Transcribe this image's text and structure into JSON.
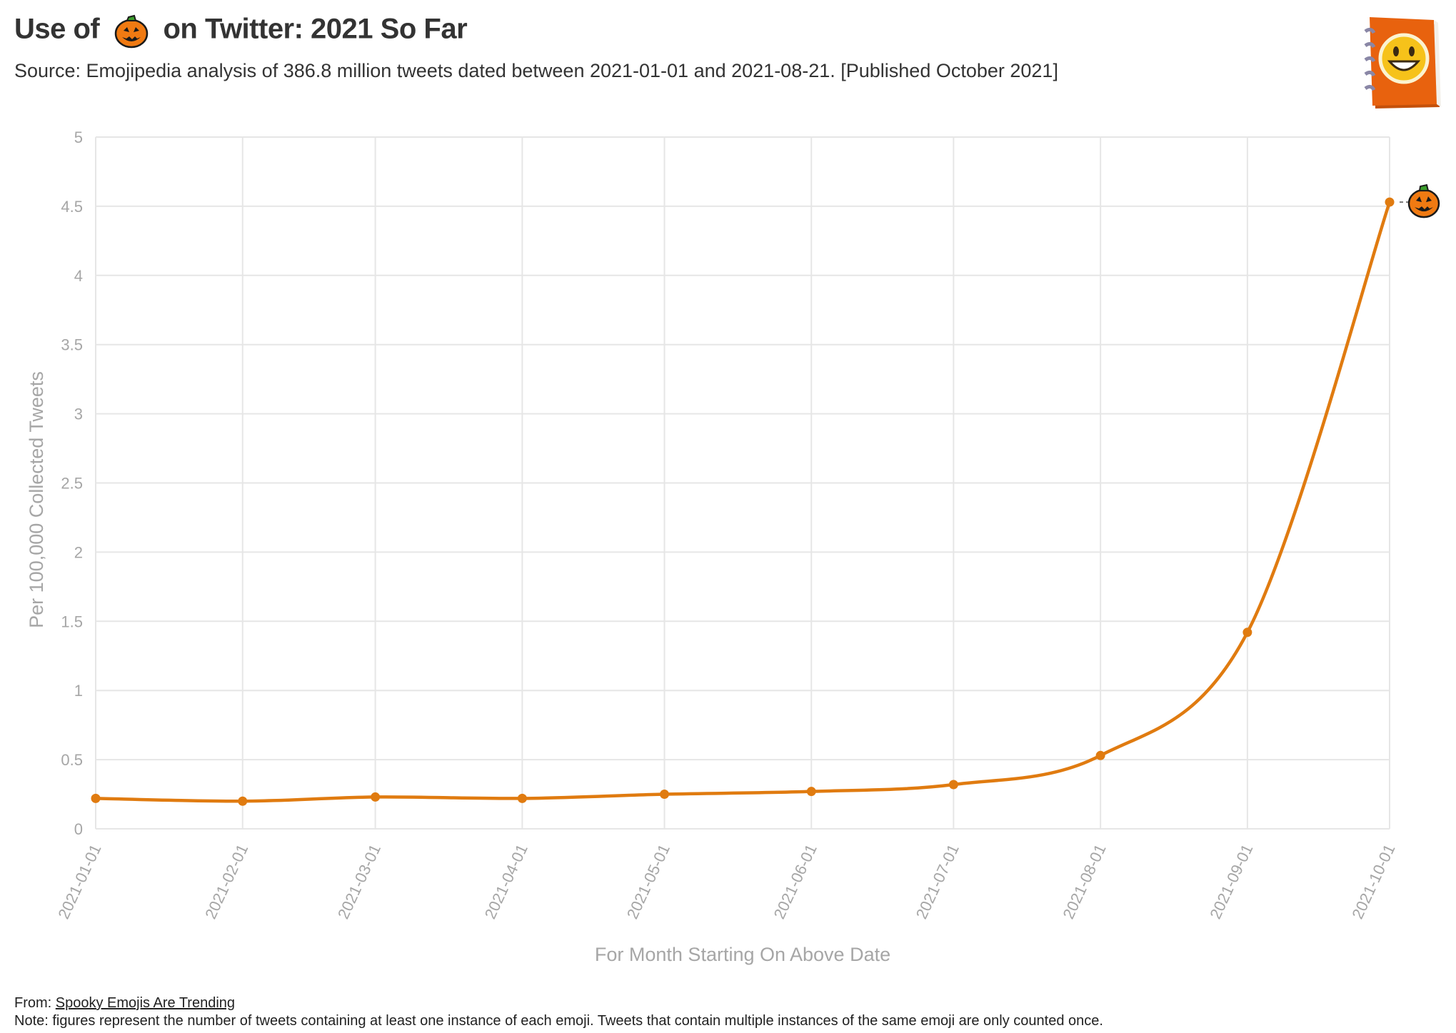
{
  "title": {
    "prefix": "Use of",
    "emoji": "jack-o-lantern-icon",
    "suffix": "on Twitter: 2021 So Far"
  },
  "subtitle": "Source: Emojipedia analysis of 386.8 million tweets dated between 2021-01-01 and 2021-08-21. [Published October 2021]",
  "logo": "emojipedia-book-logo-icon",
  "footer": {
    "from_label": "From:",
    "from_link": "Spooky Emojis Are Trending",
    "note": "Note: figures represent the number of tweets containing at least one instance of each emoji. Tweets that contain multiple instances of the same emoji are only counted once."
  },
  "colors": {
    "line": "#e07b10",
    "grid": "#e6e6e6",
    "axis_text": "#a6a6a6",
    "pumpkin": "#f07a12",
    "stem": "#3a9e2c"
  },
  "chart_data": {
    "type": "line",
    "xlabel": "For Month Starting On Above Date",
    "ylabel": "Per 100,000 Collected Tweets",
    "ylim": [
      0,
      5
    ],
    "yticks": [
      "0",
      "0.5",
      "1",
      "1.5",
      "2",
      "2.5",
      "3",
      "3.5",
      "4",
      "4.5",
      "5"
    ],
    "grid": true,
    "x": [
      "2021-01-01",
      "2021-02-01",
      "2021-03-01",
      "2021-04-01",
      "2021-05-01",
      "2021-06-01",
      "2021-07-01",
      "2021-08-01",
      "2021-09-01",
      "2021-10-01"
    ],
    "series": [
      {
        "marker": "jack-o-lantern-icon",
        "values": [
          0.22,
          0.2,
          0.23,
          0.22,
          0.25,
          0.27,
          0.32,
          0.53,
          1.42,
          4.53
        ]
      }
    ]
  }
}
